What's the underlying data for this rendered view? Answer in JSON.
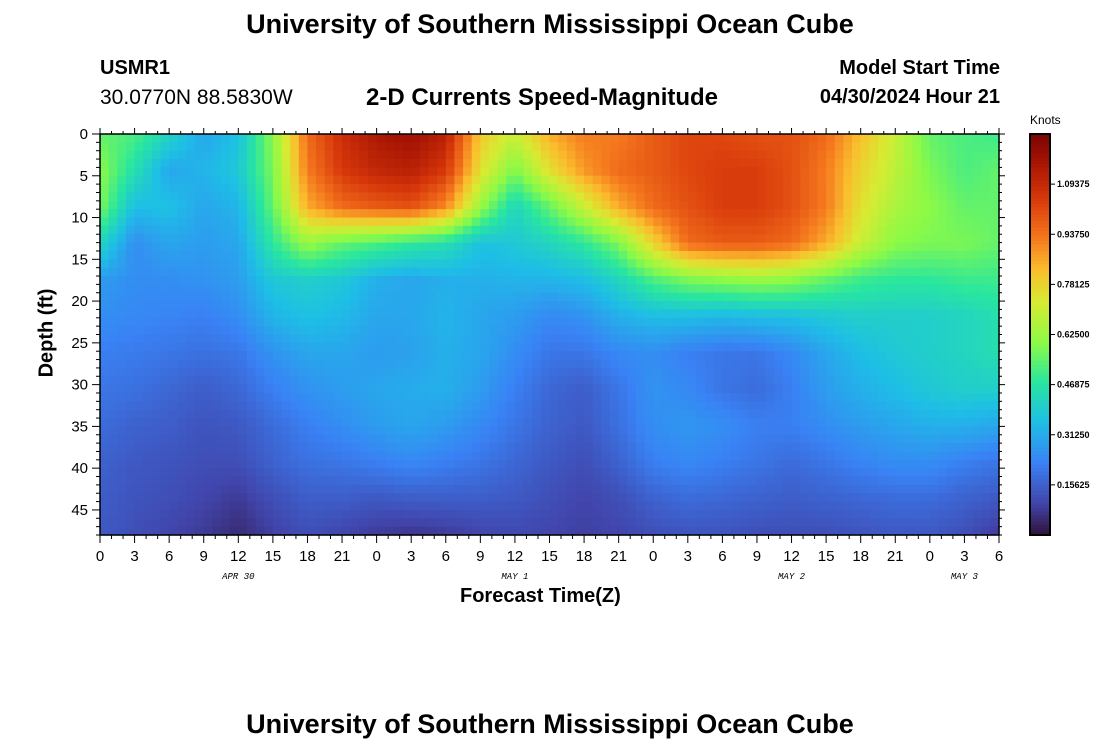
{
  "header": {
    "title": "University of Southern Mississippi Ocean Cube",
    "station": "USMR1",
    "coordinates": "30.0770N  88.5830W",
    "subtitle": "2-D Currents Speed-Magnitude",
    "model_start_label": "Model Start Time",
    "model_start_value": "04/30/2024 Hour 21"
  },
  "footer": {
    "title": "University of Southern Mississippi Ocean Cube"
  },
  "chart_data": {
    "type": "heatmap",
    "title": "2-D Currents Speed-Magnitude",
    "xlabel": "Forecast Time(Z)",
    "ylabel": "Depth (ft)",
    "units": "Knots",
    "x_range_hours": [
      0,
      78
    ],
    "y_range_ft": [
      0,
      48
    ],
    "y_ticks": [
      "0",
      "5",
      "10",
      "15",
      "20",
      "25",
      "30",
      "35",
      "40",
      "45"
    ],
    "x_ticks": [
      "0",
      "3",
      "6",
      "9",
      "12",
      "15",
      "18",
      "21",
      "0",
      "3",
      "6",
      "9",
      "12",
      "15",
      "18",
      "21",
      "0",
      "3",
      "6",
      "9",
      "12",
      "15",
      "18",
      "21",
      "0",
      "3",
      "6"
    ],
    "date_labels": [
      {
        "label": "APR 30",
        "hour": 12
      },
      {
        "label": "MAY 1",
        "hour": 36
      },
      {
        "label": "MAY 2",
        "hour": 60
      },
      {
        "label": "MAY 3",
        "hour": 75
      }
    ],
    "colorbar": {
      "min": 0.0,
      "max": 1.25,
      "tick_values": [
        0.15625,
        0.3125,
        0.46875,
        0.625,
        0.78125,
        0.9375,
        1.09375
      ],
      "tick_labels": [
        "0.15625",
        "0.31250",
        "0.46875",
        "0.62500",
        "0.78125",
        "0.93750",
        "1.09375"
      ]
    },
    "grid": false,
    "speed_knots": [
      [
        0.55,
        0.52,
        0.42,
        0.3,
        0.36,
        0.6,
        0.95,
        1.08,
        1.15,
        1.18,
        1.12,
        0.8,
        0.7,
        0.85,
        0.92,
        0.92,
        0.98,
        1.02,
        1.02,
        1.0,
        1.0,
        0.95,
        0.82,
        0.7,
        0.55,
        0.52,
        0.5
      ],
      [
        0.6,
        0.45,
        0.3,
        0.33,
        0.38,
        0.58,
        0.92,
        1.05,
        1.1,
        1.12,
        1.05,
        0.75,
        0.58,
        0.75,
        0.88,
        0.95,
        0.98,
        1.02,
        1.04,
        1.04,
        1.0,
        0.92,
        0.78,
        0.68,
        0.58,
        0.52,
        0.55
      ],
      [
        0.58,
        0.35,
        0.36,
        0.3,
        0.33,
        0.55,
        0.85,
        0.95,
        0.98,
        1.0,
        0.9,
        0.62,
        0.42,
        0.55,
        0.7,
        0.85,
        0.95,
        1.0,
        1.04,
        1.04,
        1.0,
        0.92,
        0.75,
        0.65,
        0.6,
        0.55,
        0.55
      ],
      [
        0.42,
        0.25,
        0.3,
        0.28,
        0.3,
        0.48,
        0.62,
        0.55,
        0.52,
        0.48,
        0.45,
        0.36,
        0.38,
        0.42,
        0.48,
        0.58,
        0.78,
        0.95,
        0.98,
        0.98,
        0.95,
        0.85,
        0.7,
        0.6,
        0.58,
        0.58,
        0.55
      ],
      [
        0.28,
        0.25,
        0.25,
        0.26,
        0.28,
        0.38,
        0.4,
        0.38,
        0.32,
        0.3,
        0.32,
        0.32,
        0.33,
        0.33,
        0.35,
        0.42,
        0.52,
        0.58,
        0.6,
        0.62,
        0.6,
        0.55,
        0.5,
        0.48,
        0.48,
        0.5,
        0.5
      ],
      [
        0.25,
        0.24,
        0.23,
        0.22,
        0.25,
        0.33,
        0.36,
        0.34,
        0.3,
        0.3,
        0.33,
        0.3,
        0.28,
        0.24,
        0.26,
        0.32,
        0.35,
        0.35,
        0.34,
        0.35,
        0.36,
        0.38,
        0.4,
        0.4,
        0.4,
        0.42,
        0.45
      ],
      [
        0.22,
        0.21,
        0.2,
        0.19,
        0.2,
        0.26,
        0.3,
        0.3,
        0.28,
        0.29,
        0.32,
        0.3,
        0.25,
        0.2,
        0.2,
        0.24,
        0.25,
        0.22,
        0.2,
        0.2,
        0.24,
        0.3,
        0.35,
        0.38,
        0.4,
        0.42,
        0.45
      ],
      [
        0.2,
        0.19,
        0.17,
        0.15,
        0.17,
        0.22,
        0.26,
        0.28,
        0.3,
        0.31,
        0.32,
        0.28,
        0.22,
        0.17,
        0.15,
        0.2,
        0.26,
        0.24,
        0.2,
        0.18,
        0.22,
        0.28,
        0.32,
        0.35,
        0.38,
        0.4,
        0.4
      ],
      [
        0.18,
        0.16,
        0.15,
        0.13,
        0.14,
        0.18,
        0.22,
        0.25,
        0.28,
        0.3,
        0.28,
        0.24,
        0.2,
        0.16,
        0.14,
        0.19,
        0.25,
        0.27,
        0.25,
        0.22,
        0.22,
        0.25,
        0.28,
        0.3,
        0.32,
        0.32,
        0.3
      ],
      [
        0.16,
        0.14,
        0.13,
        0.12,
        0.12,
        0.16,
        0.19,
        0.2,
        0.22,
        0.24,
        0.22,
        0.2,
        0.17,
        0.14,
        0.12,
        0.16,
        0.22,
        0.24,
        0.22,
        0.2,
        0.18,
        0.2,
        0.23,
        0.25,
        0.25,
        0.22,
        0.2
      ],
      [
        0.15,
        0.13,
        0.12,
        0.1,
        0.08,
        0.12,
        0.15,
        0.15,
        0.14,
        0.15,
        0.15,
        0.15,
        0.14,
        0.12,
        0.1,
        0.12,
        0.16,
        0.18,
        0.17,
        0.16,
        0.15,
        0.16,
        0.17,
        0.18,
        0.18,
        0.16,
        0.14
      ],
      [
        0.14,
        0.12,
        0.1,
        0.08,
        0.05,
        0.09,
        0.12,
        0.1,
        0.08,
        0.07,
        0.08,
        0.1,
        0.11,
        0.1,
        0.09,
        0.1,
        0.12,
        0.13,
        0.13,
        0.12,
        0.12,
        0.12,
        0.13,
        0.14,
        0.14,
        0.12,
        0.08
      ]
    ]
  }
}
